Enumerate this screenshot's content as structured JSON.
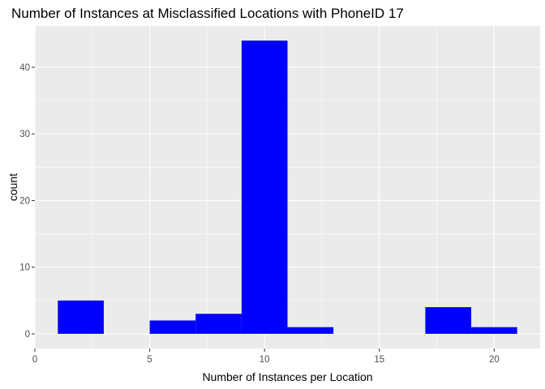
{
  "chart_data": {
    "type": "bar",
    "title": "Number of Instances at Misclassified Locations with PhoneID 17",
    "xlabel": "Number of Instances per Location",
    "ylabel": "count",
    "xlim": [
      0,
      22
    ],
    "ylim": [
      -2.2,
      46.2
    ],
    "x_ticks": [
      0,
      5,
      10,
      15,
      20
    ],
    "y_ticks": [
      0,
      10,
      20,
      30,
      40
    ],
    "bin_width": 2,
    "bins": [
      {
        "x_start": 1,
        "x_end": 3,
        "count": 5
      },
      {
        "x_start": 3,
        "x_end": 5,
        "count": 0
      },
      {
        "x_start": 5,
        "x_end": 7,
        "count": 2
      },
      {
        "x_start": 7,
        "x_end": 9,
        "count": 3
      },
      {
        "x_start": 9,
        "x_end": 11,
        "count": 44
      },
      {
        "x_start": 11,
        "x_end": 13,
        "count": 1
      },
      {
        "x_start": 13,
        "x_end": 15,
        "count": 0
      },
      {
        "x_start": 15,
        "x_end": 17,
        "count": 0
      },
      {
        "x_start": 17,
        "x_end": 19,
        "count": 4
      },
      {
        "x_start": 19,
        "x_end": 21,
        "count": 1
      }
    ],
    "bar_color": "#0000ff",
    "panel_background": "#ebebeb",
    "grid_color": "#ffffff",
    "grid": true,
    "legend": "none"
  }
}
